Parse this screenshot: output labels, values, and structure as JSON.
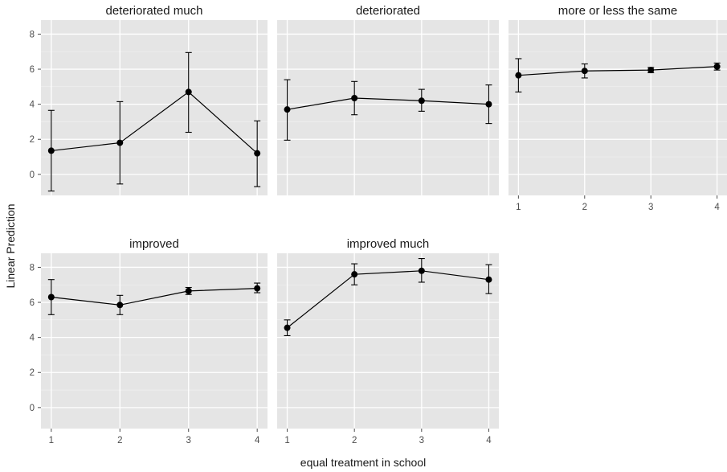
{
  "chart_data": {
    "type": "scatter",
    "xlabel": "equal treatment in school",
    "ylabel": "Linear Prediction",
    "x_ticks": [
      1,
      2,
      3,
      4
    ],
    "y_ticks": [
      0,
      2,
      4,
      6,
      8
    ],
    "ylim": [
      -1.2,
      8.8
    ],
    "xlim": [
      0.85,
      4.15
    ],
    "grid": true,
    "connected_points": true,
    "error_bars": true,
    "panels": [
      {
        "title": "deteriorated much",
        "x": [
          1,
          2,
          3,
          4
        ],
        "y": [
          1.35,
          1.8,
          4.7,
          1.2
        ],
        "lower": [
          -0.95,
          -0.55,
          2.4,
          -0.7
        ],
        "upper": [
          3.65,
          4.15,
          6.95,
          3.05
        ]
      },
      {
        "title": "deteriorated",
        "x": [
          1,
          2,
          3,
          4
        ],
        "y": [
          3.7,
          4.35,
          4.2,
          4.0
        ],
        "lower": [
          1.95,
          3.4,
          3.6,
          2.9
        ],
        "upper": [
          5.4,
          5.3,
          4.85,
          5.1
        ]
      },
      {
        "title": "more or less the same",
        "x": [
          1,
          2,
          3,
          4
        ],
        "y": [
          5.65,
          5.9,
          5.95,
          6.15
        ],
        "lower": [
          4.7,
          5.5,
          5.8,
          5.95
        ],
        "upper": [
          6.6,
          6.3,
          6.1,
          6.35
        ]
      },
      {
        "title": "improved",
        "x": [
          1,
          2,
          3,
          4
        ],
        "y": [
          6.3,
          5.85,
          6.65,
          6.8
        ],
        "lower": [
          5.3,
          5.3,
          6.45,
          6.55
        ],
        "upper": [
          7.3,
          6.4,
          6.85,
          7.1
        ]
      },
      {
        "title": "improved much",
        "x": [
          1,
          2,
          3,
          4
        ],
        "y": [
          4.55,
          7.6,
          7.8,
          7.3
        ],
        "lower": [
          4.1,
          7.0,
          7.15,
          6.5
        ],
        "upper": [
          5.0,
          8.2,
          8.5,
          8.15
        ]
      }
    ]
  }
}
